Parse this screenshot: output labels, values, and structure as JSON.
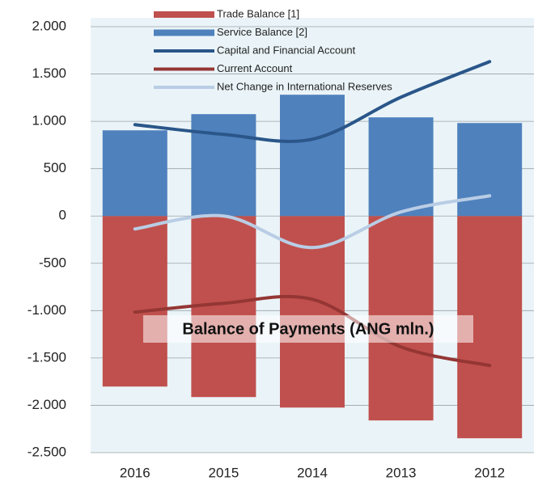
{
  "chart_data": {
    "type": "bar-line",
    "categories": [
      "2016",
      "2015",
      "2014",
      "2013",
      "2012"
    ],
    "series": [
      {
        "name": "Trade Balance [1]",
        "kind": "bar",
        "color": "#c0504d",
        "values": [
          -1802,
          -1913,
          -2024,
          -2160,
          -2348
        ]
      },
      {
        "name": "Service Balance [2]",
        "kind": "bar",
        "color": "#4f81bd",
        "values": [
          905,
          1076,
          1281,
          1042,
          982
        ]
      },
      {
        "name": "Capital and Financial Account",
        "kind": "line",
        "color": "#2a5689",
        "values": [
          965,
          862,
          811,
          1255,
          1631
        ]
      },
      {
        "name": "Current Account",
        "kind": "line",
        "color": "#943634",
        "values": [
          -1016,
          -922,
          -880,
          -1383,
          -1580
        ]
      },
      {
        "name": "Net Change in International Reserves",
        "kind": "line",
        "color": "#b9cde5",
        "values": [
          -137,
          0,
          -333,
          43,
          213
        ]
      }
    ],
    "annotation": "Balance of Payments (ANG mln.)",
    "ylim": [
      -2500,
      2000
    ],
    "yticks": [
      {
        "value": -2500,
        "label": "-2.500"
      },
      {
        "value": -2000,
        "label": "-2.000"
      },
      {
        "value": -1500,
        "label": "-1.500"
      },
      {
        "value": -1000,
        "label": "-1.000"
      },
      -500,
      0,
      500,
      {
        "value": 1000,
        "label": "1.000"
      },
      {
        "value": 1500,
        "label": "1.500"
      },
      {
        "value": 2000,
        "label": "2.000"
      }
    ],
    "negative_tick_color": "#c0504d",
    "grid": true
  }
}
